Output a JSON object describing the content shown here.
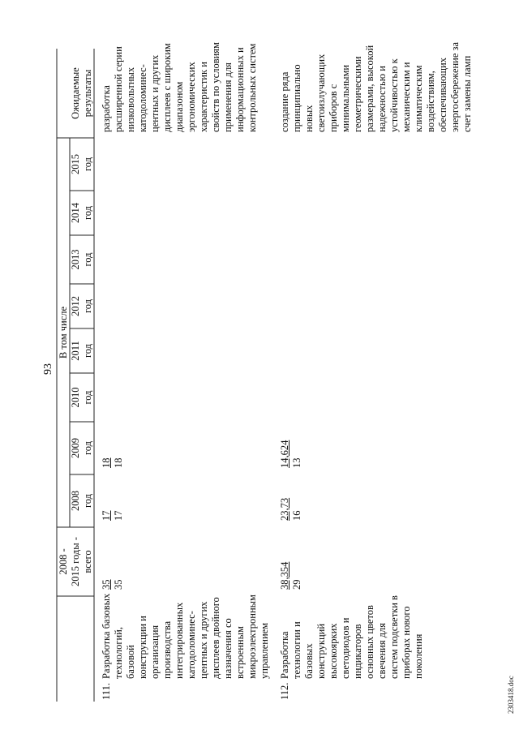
{
  "page_number": "93",
  "table": {
    "header": {
      "total": [
        "2008 -",
        "2015 годы -",
        "всего"
      ],
      "including": "В том числе",
      "years": [
        [
          "2008",
          "год"
        ],
        [
          "2009",
          "год"
        ],
        [
          "2010",
          "год"
        ],
        [
          "2011",
          "год"
        ],
        [
          "2012",
          "год"
        ],
        [
          "2013",
          "год"
        ],
        [
          "2014",
          "год"
        ],
        [
          "2015",
          "год"
        ]
      ],
      "results": [
        "Ожидаемые",
        "результаты"
      ]
    },
    "rows": [
      {
        "number": "111.",
        "name": [
          "Разработка базовых",
          "технологий,",
          "базовой",
          "конструкции и",
          "организация",
          "производства",
          "интегрированных",
          "катодоломинес-",
          "центных и других",
          "дисплеев двойного",
          "назначения со",
          "встроенным",
          "микроэлектронным",
          "управлением"
        ],
        "total": [
          "35",
          "35"
        ],
        "years": [
          [
            "17",
            "17"
          ],
          [
            "18",
            "18"
          ]
        ],
        "results": [
          "разработка",
          "расширенной серии",
          "низковольтных",
          "катодоломинес-",
          "центных и других",
          "дисплеев с широким",
          "диапазоном",
          "эргономических",
          "характеристик и",
          "свойств по условиям",
          "применения для",
          "информационных и",
          "контрольных систем"
        ]
      },
      {
        "number": "112.",
        "name": [
          "Разработка",
          "технологии и",
          "базовых",
          "конструкций",
          "высокоярких",
          "светодиодов и",
          "индикаторов",
          "основных цветов",
          "свечения для",
          "систем подсветки в",
          "приборах нового",
          "поколения"
        ],
        "total": [
          "38,354",
          "29"
        ],
        "years": [
          [
            "23,73",
            "16"
          ],
          [
            "14,624",
            "13"
          ]
        ],
        "results": [
          "создание ряда",
          "принципиально",
          "новых",
          "светоизлучающих",
          "приборов с",
          "минимальными",
          "геометрическими",
          "размерами, высокой",
          "надежностью и",
          "устойчивостью к",
          "механическим и",
          "климатическим",
          "воздействиям,",
          "обеспечивающих",
          "энергосбережение за",
          "счет замены ламп"
        ]
      }
    ]
  },
  "footer": "2303418.doc"
}
